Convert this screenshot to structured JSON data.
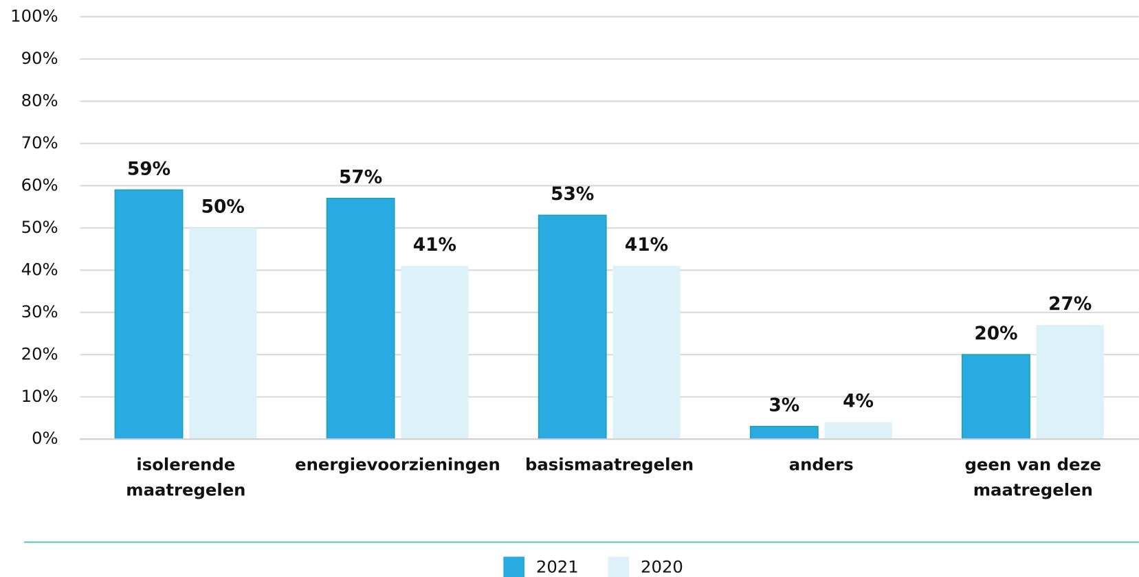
{
  "chart_data": {
    "type": "bar",
    "categories": [
      "isolerende maatregelen",
      "energievoorzieningen",
      "basismaatregelen",
      "anders",
      "geen van deze maatregelen"
    ],
    "series": [
      {
        "name": "2021",
        "color": "#29abe2",
        "values": [
          59,
          57,
          53,
          3,
          20
        ],
        "value_labels": [
          "59%",
          "57%",
          "53%",
          "3%",
          "20%"
        ]
      },
      {
        "name": "2020",
        "color": "#ddf1f8",
        "values": [
          50,
          41,
          41,
          4,
          27
        ],
        "value_labels": [
          "50%",
          "41%",
          "41%",
          "4%",
          "27%"
        ]
      }
    ],
    "ylim": [
      0,
      100
    ],
    "yticks": [
      {
        "value": 0,
        "label": "0%"
      },
      {
        "value": 10,
        "label": "10%"
      },
      {
        "value": 20,
        "label": "20%"
      },
      {
        "value": 30,
        "label": "30%"
      },
      {
        "value": 40,
        "label": "40%"
      },
      {
        "value": 50,
        "label": "50%"
      },
      {
        "value": 60,
        "label": "60%"
      },
      {
        "value": 70,
        "label": "70%"
      },
      {
        "value": 80,
        "label": "80%"
      },
      {
        "value": 90,
        "label": "90%"
      },
      {
        "value": 100,
        "label": "100%"
      }
    ],
    "grid": true,
    "legend": "bottom"
  }
}
